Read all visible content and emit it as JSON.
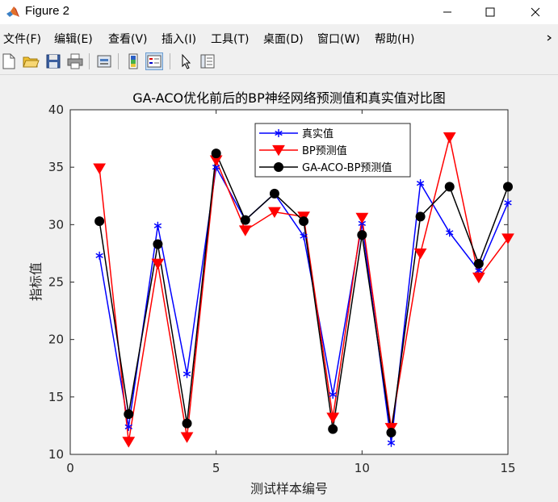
{
  "window": {
    "title": "Figure 2",
    "minimize_icon": "minimize-icon",
    "maximize_icon": "maximize-icon",
    "close_icon": "close-icon"
  },
  "menu": {
    "items": [
      "文件(F)",
      "编辑(E)",
      "查看(V)",
      "插入(I)",
      "工具(T)",
      "桌面(D)",
      "窗口(W)",
      "帮助(H)"
    ]
  },
  "toolbar": {
    "icons": [
      "new-figure-icon",
      "open-file-icon",
      "save-icon",
      "print-icon",
      "link-plot-icon",
      "insert-colorbar-icon",
      "insert-legend-icon",
      "edit-plot-icon",
      "property-inspector-icon"
    ]
  },
  "chart_data": {
    "type": "line",
    "title": "GA-ACO优化前后的BP神经网络预测值和真实值对比图",
    "xlabel": "测试样本编号",
    "ylabel": "指标值",
    "xlim": [
      0,
      15
    ],
    "ylim": [
      10,
      40
    ],
    "xticks": [
      0,
      5,
      10,
      15
    ],
    "yticks": [
      10,
      15,
      20,
      25,
      30,
      35,
      40
    ],
    "grid": false,
    "legend_position": "top-center",
    "x": [
      1,
      2,
      3,
      4,
      5,
      6,
      7,
      8,
      9,
      10,
      11,
      12,
      13,
      14,
      15
    ],
    "series": [
      {
        "name": "真实值",
        "color": "#0000ff",
        "marker": "asterisk",
        "values": [
          27.3,
          12.4,
          29.9,
          17.0,
          35.0,
          30.4,
          32.7,
          29.0,
          15.2,
          30.1,
          11.0,
          33.6,
          29.3,
          26.0,
          31.9
        ]
      },
      {
        "name": "BP预测值",
        "color": "#ff0000",
        "marker": "triangle-down",
        "values": [
          34.9,
          11.1,
          26.6,
          11.5,
          35.6,
          29.5,
          31.1,
          30.7,
          13.2,
          30.6,
          12.3,
          27.5,
          37.6,
          25.4,
          28.8
        ]
      },
      {
        "name": "GA-ACO-BP预测值",
        "color": "#000000",
        "marker": "circle",
        "values": [
          30.3,
          13.5,
          28.3,
          12.7,
          36.2,
          30.4,
          32.7,
          30.3,
          12.2,
          29.1,
          11.9,
          30.7,
          33.3,
          26.6,
          33.3
        ]
      }
    ]
  }
}
